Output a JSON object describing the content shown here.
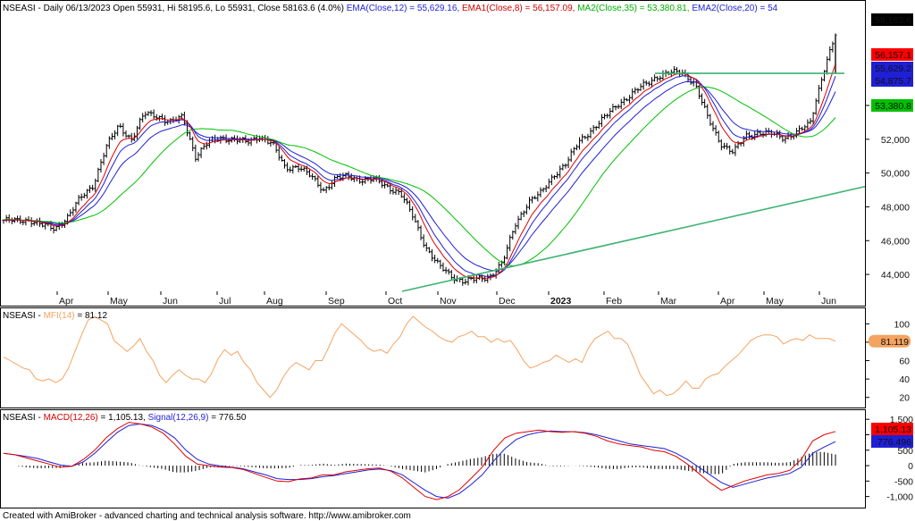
{
  "header": {
    "main": [
      {
        "text": "NSEASI - Daily 06/13/2023 Open 55931, Hi 58195.6, Lo 55931, Close 58163.6 (4.0%) ",
        "color": "#000000"
      },
      {
        "text": "EMA(Close,12) = 55,629.16, ",
        "color": "#1f1fd6"
      },
      {
        "text": "EMA1(Close,8) = 56,157.09, ",
        "color": "#d60000"
      },
      {
        "text": "MA2(Close,35) = 53,380.81, ",
        "color": "#00b000"
      },
      {
        "text": "EMA2(Close,20) = 54",
        "color": "#1f1fd6"
      }
    ],
    "mfi": [
      {
        "text": "NSEASI - ",
        "color": "#000000"
      },
      {
        "text": "MFI(14)",
        "color": "#f4a460"
      },
      {
        "text": " = 81.12",
        "color": "#000000"
      }
    ],
    "macd": [
      {
        "text": "NSEASI - ",
        "color": "#000000"
      },
      {
        "text": "MACD(12,26)",
        "color": "#d60000"
      },
      {
        "text": " = 1,105.13, ",
        "color": "#000000"
      },
      {
        "text": "Signal(12,26,9)",
        "color": "#1f1fd6"
      },
      {
        "text": " = 776.50",
        "color": "#000000"
      }
    ]
  },
  "footer": "Created with AmiBroker - advanced charting and technical analysis software. http://www.amibroker.com",
  "colors": {
    "price_bars": "#000000",
    "ema12": "#1f1fd6",
    "ema8": "#e00000",
    "ma35": "#00c000",
    "ema20": "#1f1fd6",
    "trendline": "#3cb371",
    "mfi": "#f4a460",
    "macd": "#e00000",
    "signal": "#1f1fd6",
    "histogram": "#000000"
  },
  "chart_data": [
    {
      "type": "candlestick",
      "title": "NSEASI - Daily 06/13/2023",
      "x_labels": [
        "Apr",
        "May",
        "Jun",
        "Jul",
        "Aug",
        "Sep",
        "Oct",
        "Nov",
        "Dec",
        "2023",
        "Feb",
        "Mar",
        "Apr",
        "May",
        "Jun"
      ],
      "ylim": [
        43000,
        59500
      ],
      "yticks": [
        44000,
        46000,
        48000,
        50000,
        52000,
        54000
      ],
      "y_tick_labels": [
        "44,000",
        "46,000",
        "48,000",
        "50,000",
        "52,000",
        "54,000"
      ],
      "close_path": [
        47200,
        47150,
        47250,
        46900,
        46700,
        47400,
        48500,
        49300,
        51500,
        52800,
        52000,
        53500,
        53400,
        53000,
        53300,
        51000,
        51800,
        52100,
        52000,
        51800,
        52200,
        51700,
        50300,
        50400,
        49800,
        49000,
        49700,
        49800,
        49600,
        49600,
        49200,
        48800,
        47400,
        45600,
        44500,
        43900,
        43600,
        43700,
        43900,
        44700,
        47000,
        48300,
        48800,
        49900,
        50600,
        51900,
        52600,
        53300,
        54100,
        54600,
        55200,
        55700,
        55900,
        56000,
        55300,
        53300,
        51800,
        51200,
        52200,
        52400,
        52300,
        52100,
        52400,
        52900,
        55900,
        58163.6
      ],
      "series": [
        {
          "name": "EMA(Close,12)",
          "last": 55629.16
        },
        {
          "name": "EMA1(Close,8)",
          "last": 56157.09
        },
        {
          "name": "MA2(Close,35)",
          "last": 53380.81
        },
        {
          "name": "EMA2(Close,20)",
          "last": 54875.7
        }
      ],
      "value_labels": [
        {
          "text": "58,163.6",
          "value": 58163.6,
          "bg": "#000000",
          "fg": "#ffffff"
        },
        {
          "text": "56,157.1",
          "value": 56157.1,
          "bg": "#ff0000",
          "fg": "#ffffff"
        },
        {
          "text": "55,629.2",
          "value": 55629.2,
          "bg": "#1f1fd6",
          "fg": "#ffffff"
        },
        {
          "text": "54,875.7",
          "value": 54875.7,
          "bg": "#1f1fd6",
          "fg": "#ffffff"
        },
        {
          "text": "53,380.8",
          "value": 53380.8,
          "bg": "#00c000",
          "fg": "#000000"
        }
      ],
      "horizontal_line": {
        "value": 55900,
        "from": "Mar",
        "to": "Jun"
      },
      "trendline": {
        "from_value": 43000,
        "from_label": "Oct",
        "to_value": 49300
      }
    },
    {
      "type": "line",
      "name": "MFI(14)",
      "ylim": [
        10,
        112
      ],
      "yticks": [
        20,
        40,
        60,
        80,
        100
      ],
      "y_tick_labels": [
        "20",
        "40",
        "60",
        "80",
        "100"
      ],
      "values": [
        64,
        60,
        56,
        52,
        50,
        40,
        38,
        40,
        36,
        40,
        52,
        70,
        88,
        104,
        108,
        104,
        100,
        82,
        76,
        70,
        76,
        84,
        70,
        60,
        44,
        36,
        44,
        50,
        44,
        40,
        40,
        36,
        46,
        62,
        72,
        66,
        70,
        58,
        50,
        36,
        28,
        20,
        28,
        42,
        52,
        58,
        54,
        50,
        60,
        60,
        74,
        90,
        100,
        94,
        88,
        82,
        74,
        70,
        72,
        68,
        78,
        86,
        100,
        108,
        102,
        96,
        92,
        86,
        82,
        80,
        86,
        88,
        92,
        86,
        86,
        80,
        84,
        80,
        82,
        72,
        60,
        52,
        54,
        58,
        60,
        66,
        62,
        58,
        62,
        58,
        74,
        84,
        88,
        92,
        84,
        84,
        78,
        62,
        44,
        34,
        24,
        28,
        22,
        24,
        30,
        38,
        30,
        30,
        40,
        44,
        46,
        54,
        60,
        66,
        74,
        82,
        86,
        88,
        88,
        86,
        78,
        82,
        84,
        82,
        88,
        84,
        84,
        84,
        81.12
      ],
      "last_label": {
        "text": "81.119",
        "value": 81.119
      }
    },
    {
      "type": "line",
      "name": "MACD(12,26)",
      "ylim": [
        -1300,
        1650
      ],
      "yticks": [
        -1000,
        -500,
        0,
        500,
        1000,
        1500
      ],
      "y_tick_labels": [
        "-1,000",
        "-500",
        "0",
        "500",
        "1,000",
        "1,500"
      ],
      "series": [
        {
          "name": "MACD(12,26)",
          "values": [
            400,
            350,
            250,
            150,
            50,
            -50,
            -20,
            200,
            500,
            900,
            1200,
            1400,
            1350,
            1250,
            1050,
            700,
            300,
            50,
            0,
            -50,
            -60,
            -120,
            -250,
            -380,
            -500,
            -520,
            -430,
            -400,
            -300,
            -300,
            -200,
            -150,
            -100,
            -80,
            -180,
            -400,
            -700,
            -1000,
            -1100,
            -1000,
            -780,
            -420,
            -50,
            500,
            900,
            1050,
            1100,
            1150,
            1100,
            1080,
            1100,
            1050,
            950,
            800,
            700,
            650,
            600,
            500,
            450,
            300,
            50,
            -250,
            -550,
            -800,
            -650,
            -500,
            -400,
            -300,
            -250,
            -150,
            200,
            800,
            1000,
            1105.13
          ]
        },
        {
          "name": "Signal(12,26,9)",
          "values": [
            400,
            350,
            300,
            230,
            120,
            20,
            -20,
            120,
            400,
            750,
            1080,
            1300,
            1350,
            1300,
            1150,
            900,
            500,
            200,
            50,
            -10,
            -50,
            -100,
            -200,
            -300,
            -420,
            -450,
            -450,
            -420,
            -360,
            -320,
            -260,
            -200,
            -140,
            -110,
            -160,
            -300,
            -550,
            -800,
            -1000,
            -1050,
            -900,
            -620,
            -300,
            150,
            550,
            850,
            1000,
            1080,
            1120,
            1100,
            1100,
            1070,
            1000,
            900,
            800,
            700,
            650,
            600,
            550,
            400,
            200,
            -50,
            -300,
            -550,
            -700,
            -600,
            -500,
            -400,
            -330,
            -250,
            -50,
            400,
            600,
            776.5
          ]
        }
      ],
      "last_labels": [
        {
          "text": "1,105.13",
          "value": 1105.13,
          "bg": "#ff0000"
        },
        {
          "text": "776.496",
          "value": 776.496,
          "bg": "#1f1fd6"
        }
      ]
    }
  ]
}
